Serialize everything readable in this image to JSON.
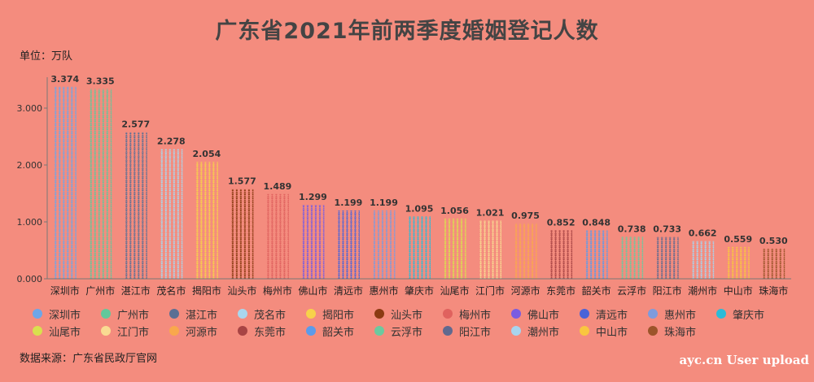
{
  "title": "广东省2021年前两季度婚姻登记人数",
  "unit_label": "单位：万队",
  "source": "数据来源：广东省民政厅官网",
  "watermark": "ayc.cn User upload",
  "chart_data": {
    "type": "bar",
    "title": "广东省2021年前两季度婚姻登记人数",
    "ylabel": "单位：万队",
    "ylim": [
      0,
      3.5
    ],
    "yticks": [
      "0.000",
      "1.000",
      "2.000",
      "3.000"
    ],
    "grid": false,
    "legend_position": "bottom",
    "categories": [
      "深圳市",
      "广州市",
      "湛江市",
      "茂名市",
      "揭阳市",
      "汕头市",
      "梅州市",
      "佛山市",
      "清远市",
      "惠州市",
      "肇庆市",
      "汕尾市",
      "江门市",
      "河源市",
      "东莞市",
      "韶关市",
      "云浮市",
      "阳江市",
      "潮州市",
      "中山市",
      "珠海市"
    ],
    "values": [
      3.374,
      3.335,
      2.577,
      2.278,
      2.054,
      1.577,
      1.489,
      1.299,
      1.199,
      1.199,
      1.095,
      1.056,
      1.021,
      0.975,
      0.852,
      0.848,
      0.738,
      0.733,
      0.662,
      0.559,
      0.53
    ],
    "value_labels": [
      "3.374",
      "3.335",
      "2.577",
      "2.278",
      "2.054",
      "1.577",
      "1.489",
      "1.299",
      "1.199",
      "1.199",
      "1.095",
      "1.056",
      "1.021",
      "0.975",
      "0.852",
      "0.848",
      "0.738",
      "0.733",
      "0.662",
      "0.559",
      "0.530"
    ],
    "colors": [
      "#6EA6E8",
      "#62C89B",
      "#5B6F94",
      "#A9D7EE",
      "#F7D24A",
      "#8B3A12",
      "#E0625E",
      "#7A5CE0",
      "#4A63D8",
      "#7E9BDC",
      "#2BBBD8",
      "#D9E04E",
      "#F9DB92",
      "#F9A84C",
      "#A84444",
      "#5C9BEA",
      "#6CC99F",
      "#60698F",
      "#A8D4EE",
      "#F9C640",
      "#9C542A"
    ]
  }
}
